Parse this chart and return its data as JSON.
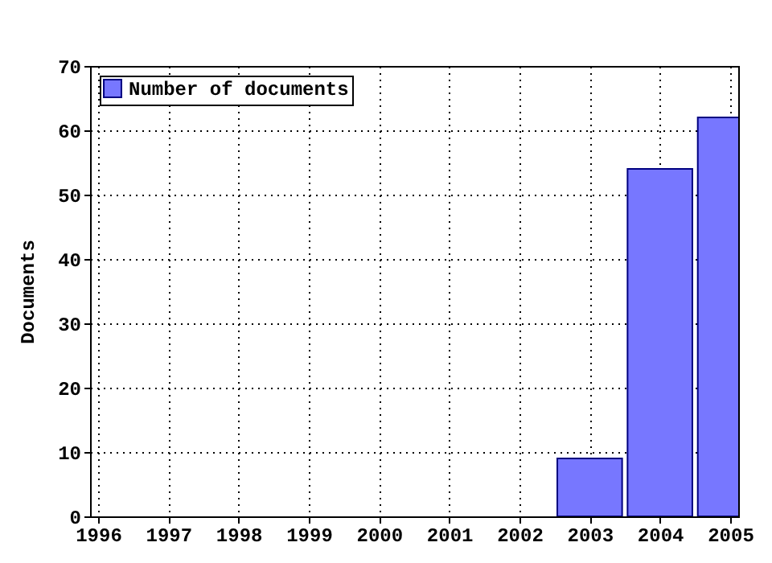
{
  "chart_data": {
    "type": "bar",
    "ylabel": "Documents",
    "x": [
      2003,
      2004,
      2005
    ],
    "series": [
      {
        "name": "Number of documents",
        "color": "#7777ff",
        "values": [
          9,
          54,
          62
        ]
      }
    ],
    "xlim": [
      1996,
      2005
    ],
    "xticks": [
      1996,
      1997,
      1998,
      1999,
      2000,
      2001,
      2002,
      2003,
      2004,
      2005
    ],
    "ylim": [
      0,
      70
    ],
    "yticks": [
      0,
      10,
      20,
      30,
      40,
      50,
      60,
      70
    ],
    "grid": true,
    "legend": "top left"
  }
}
